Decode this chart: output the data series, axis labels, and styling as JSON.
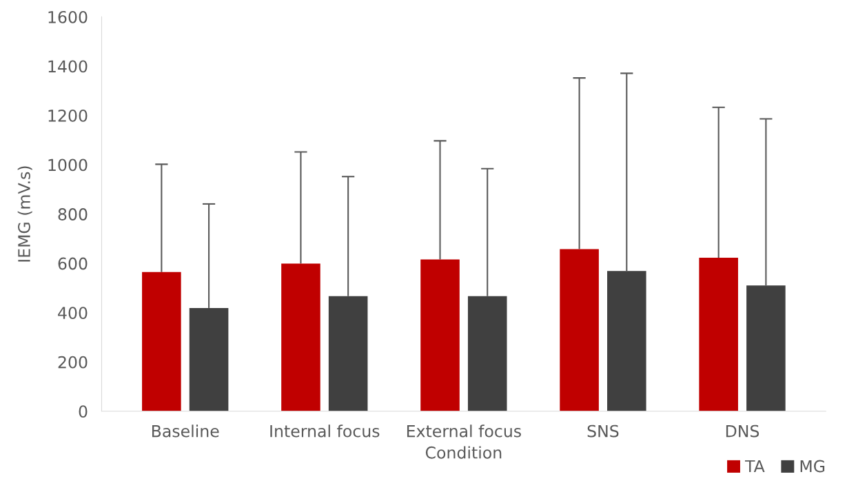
{
  "chart_data": {
    "type": "bar",
    "xlabel": "Condition",
    "ylabel": "IEMG (mV.s)",
    "categories": [
      "Baseline",
      "Internal focus",
      "External focus",
      "SNS",
      "DNS"
    ],
    "series": [
      {
        "name": "TA",
        "color": "#c00000",
        "values": [
          565,
          599,
          616,
          658,
          623
        ],
        "errors": [
          [
            565,
            1002
          ],
          [
            599,
            1052
          ],
          [
            616,
            1097
          ],
          [
            658,
            1352
          ],
          [
            623,
            1233
          ]
        ]
      },
      {
        "name": "MG",
        "color": "#404040",
        "values": [
          419,
          467,
          467,
          569,
          510
        ],
        "errors": [
          [
            419,
            841
          ],
          [
            467,
            952
          ],
          [
            467,
            984
          ],
          [
            569,
            1371
          ],
          [
            510,
            1186
          ]
        ]
      }
    ],
    "ylim": [
      0,
      1600
    ],
    "yticks": [
      0,
      200,
      400,
      600,
      800,
      1000,
      1200,
      1400,
      1600
    ],
    "grid": false,
    "legend": "bottom right"
  }
}
